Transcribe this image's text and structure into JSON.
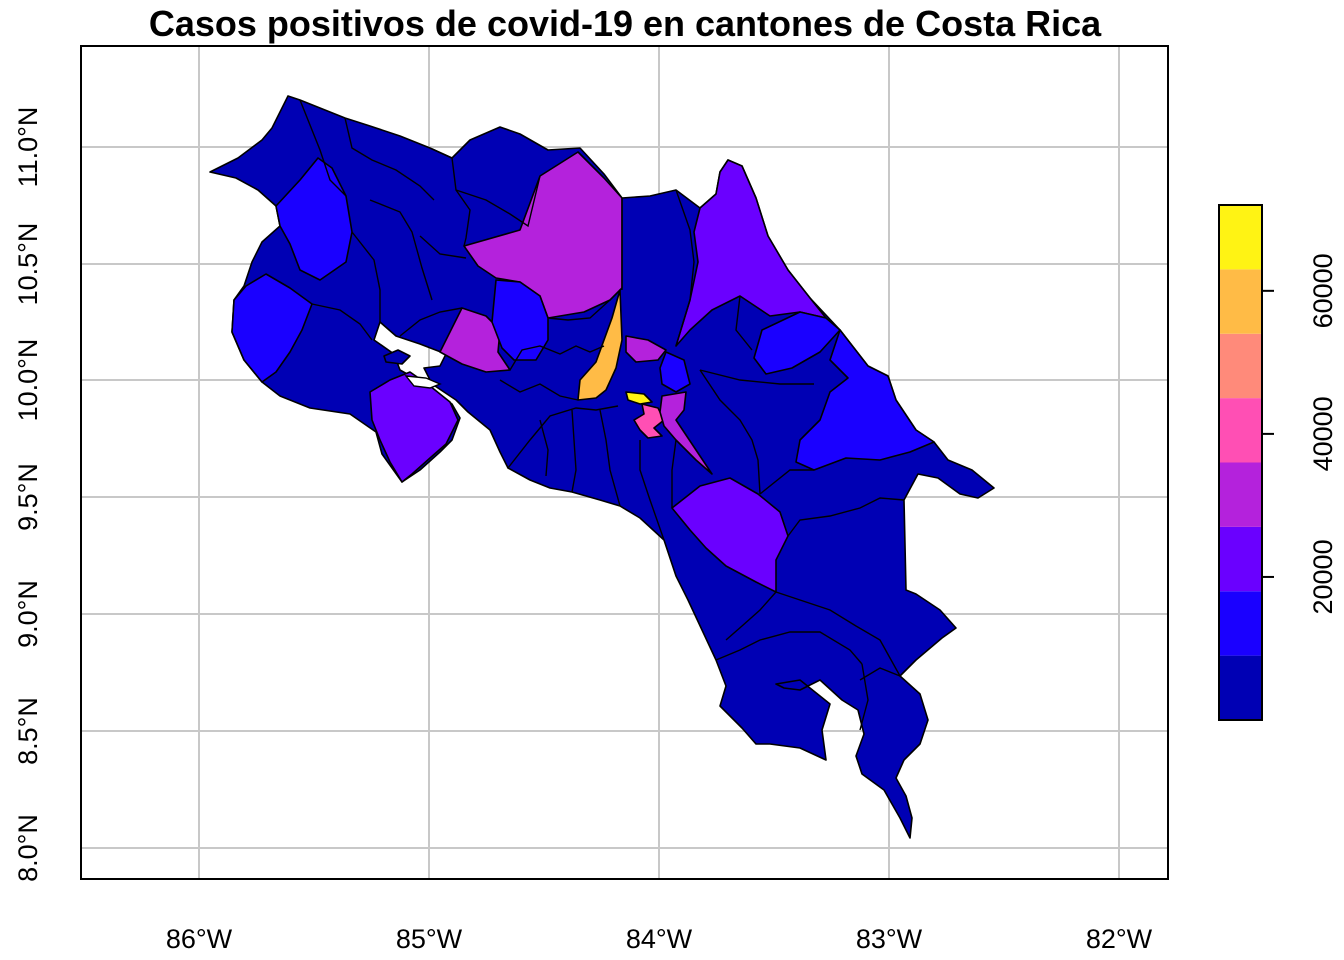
{
  "chart_data": {
    "type": "choropleth",
    "title": "Casos positivos de covid-19 en cantones de Costa Rica",
    "x_ticks": [
      "86°W",
      "85°W",
      "84°W",
      "83°W",
      "82°W"
    ],
    "y_ticks": [
      "8.0°N",
      "8.5°N",
      "9.0°N",
      "9.5°N",
      "10.0°N",
      "10.5°N",
      "11.0°N"
    ],
    "xlim": [
      -86.52,
      -81.78
    ],
    "ylim": [
      7.87,
      11.45
    ],
    "grid": true,
    "legend": {
      "position": "right",
      "range": [
        0,
        72000
      ],
      "tick_values": [
        20000,
        40000,
        60000
      ],
      "tick_labels": [
        "20000",
        "40000",
        "60000"
      ],
      "bins": [
        {
          "from": 0,
          "to": 9000,
          "color": "#0000b4"
        },
        {
          "from": 9000,
          "to": 18000,
          "color": "#1a00ff"
        },
        {
          "from": 18000,
          "to": 27000,
          "color": "#6a00ff"
        },
        {
          "from": 27000,
          "to": 36000,
          "color": "#b422dc"
        },
        {
          "from": 36000,
          "to": 45000,
          "color": "#ff4fb4"
        },
        {
          "from": 45000,
          "to": 54000,
          "color": "#ff8a7a"
        },
        {
          "from": 54000,
          "to": 63000,
          "color": "#ffbb46"
        },
        {
          "from": 63000,
          "to": 72000,
          "color": "#fff314"
        }
      ]
    }
  }
}
